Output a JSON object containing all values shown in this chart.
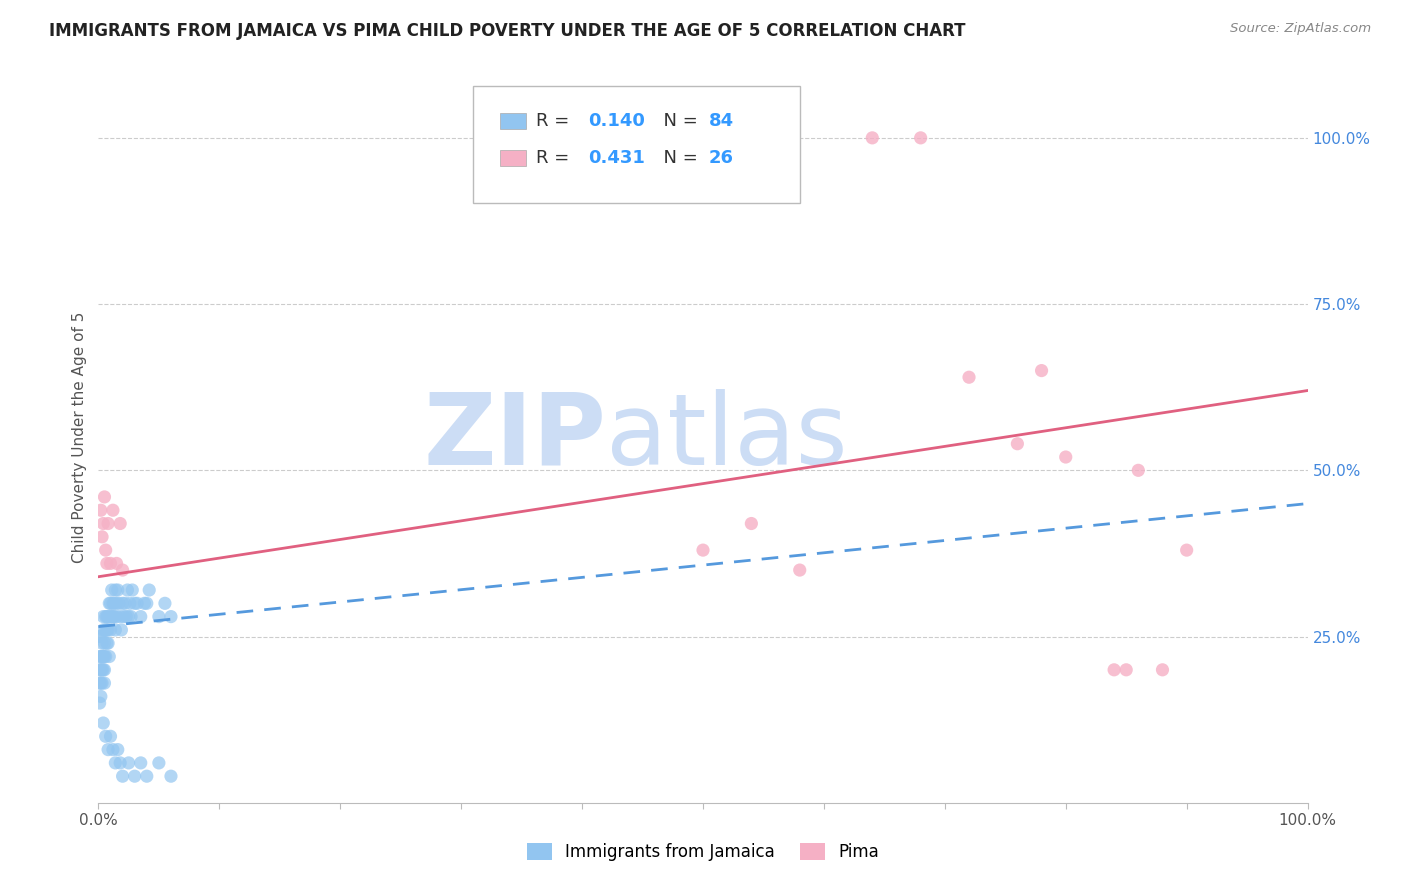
{
  "title": "IMMIGRANTS FROM JAMAICA VS PIMA CHILD POVERTY UNDER THE AGE OF 5 CORRELATION CHART",
  "source": "Source: ZipAtlas.com",
  "ylabel": "Child Poverty Under the Age of 5",
  "ylabel_right_ticks": [
    "100.0%",
    "75.0%",
    "50.0%",
    "25.0%"
  ],
  "ylabel_right_vals": [
    1.0,
    0.75,
    0.5,
    0.25
  ],
  "legend_label1": "Immigrants from Jamaica",
  "legend_label2": "Pima",
  "color_blue": "#92c5f0",
  "color_pink": "#f5b0c5",
  "color_trendline_blue": "#5599dd",
  "color_trendline_pink": "#e06080",
  "watermark_zip": "ZIP",
  "watermark_atlas": "atlas",
  "watermark_color": "#ccddf5",
  "blue_scatter_x": [
    0.001,
    0.001,
    0.001,
    0.001,
    0.001,
    0.002,
    0.002,
    0.002,
    0.002,
    0.002,
    0.003,
    0.003,
    0.003,
    0.003,
    0.004,
    0.004,
    0.004,
    0.004,
    0.005,
    0.005,
    0.005,
    0.005,
    0.006,
    0.006,
    0.006,
    0.007,
    0.007,
    0.007,
    0.008,
    0.008,
    0.008,
    0.009,
    0.009,
    0.01,
    0.01,
    0.01,
    0.011,
    0.011,
    0.012,
    0.012,
    0.013,
    0.013,
    0.014,
    0.014,
    0.015,
    0.015,
    0.016,
    0.017,
    0.018,
    0.019,
    0.02,
    0.021,
    0.022,
    0.023,
    0.024,
    0.025,
    0.026,
    0.027,
    0.028,
    0.03,
    0.032,
    0.035,
    0.038,
    0.04,
    0.042,
    0.05,
    0.055,
    0.06,
    0.004,
    0.006,
    0.008,
    0.01,
    0.012,
    0.014,
    0.016,
    0.018,
    0.02,
    0.025,
    0.03,
    0.035,
    0.04,
    0.05,
    0.06
  ],
  "blue_scatter_y": [
    0.2,
    0.22,
    0.18,
    0.25,
    0.15,
    0.2,
    0.18,
    0.22,
    0.25,
    0.16,
    0.22,
    0.2,
    0.18,
    0.24,
    0.26,
    0.22,
    0.2,
    0.28,
    0.24,
    0.22,
    0.2,
    0.18,
    0.26,
    0.22,
    0.28,
    0.26,
    0.28,
    0.24,
    0.28,
    0.26,
    0.24,
    0.22,
    0.3,
    0.28,
    0.26,
    0.3,
    0.32,
    0.28,
    0.3,
    0.28,
    0.3,
    0.28,
    0.26,
    0.32,
    0.3,
    0.28,
    0.32,
    0.3,
    0.28,
    0.26,
    0.3,
    0.28,
    0.3,
    0.28,
    0.32,
    0.28,
    0.3,
    0.28,
    0.32,
    0.3,
    0.3,
    0.28,
    0.3,
    0.3,
    0.32,
    0.28,
    0.3,
    0.28,
    0.12,
    0.1,
    0.08,
    0.1,
    0.08,
    0.06,
    0.08,
    0.06,
    0.04,
    0.06,
    0.04,
    0.06,
    0.04,
    0.06,
    0.04
  ],
  "pink_scatter_x": [
    0.002,
    0.003,
    0.004,
    0.005,
    0.006,
    0.007,
    0.008,
    0.01,
    0.012,
    0.015,
    0.018,
    0.02,
    0.5,
    0.54,
    0.58,
    0.64,
    0.68,
    0.72,
    0.76,
    0.8,
    0.84,
    0.86,
    0.88,
    0.9,
    0.85,
    0.78
  ],
  "pink_scatter_y": [
    0.44,
    0.4,
    0.42,
    0.46,
    0.38,
    0.36,
    0.42,
    0.36,
    0.44,
    0.36,
    0.42,
    0.35,
    0.38,
    0.42,
    0.35,
    1.0,
    1.0,
    0.64,
    0.54,
    0.52,
    0.2,
    0.5,
    0.2,
    0.38,
    0.2,
    0.65
  ],
  "blue_trend_x": [
    0.0,
    1.0
  ],
  "blue_trend_y": [
    0.265,
    0.45
  ],
  "pink_trend_x": [
    0.0,
    1.0
  ],
  "pink_trend_y": [
    0.34,
    0.62
  ],
  "xlim": [
    0.0,
    1.0
  ],
  "ylim": [
    0.0,
    1.1
  ]
}
